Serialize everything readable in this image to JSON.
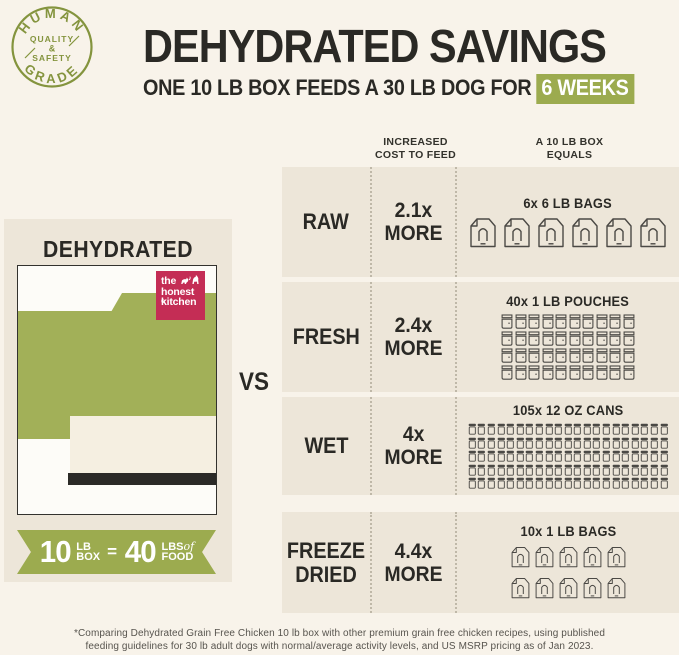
{
  "colors": {
    "page_bg": "#F8F3EA",
    "panel_beige": "#EDE6D9",
    "green": "#9CAB4F",
    "green_box": "#A2B058",
    "badge_olive": "#84943E",
    "logo_red": "#C42D55",
    "dark_text": "#2B2A26",
    "cream": "#F5EFE1"
  },
  "badge": {
    "arc_top": "HUMAN",
    "arc_bottom": "GRADE",
    "middle_line1": "QUALITY",
    "middle_line2": "&",
    "middle_line3": "SAFETY"
  },
  "header": {
    "title": "DEHYDRATED SAVINGS",
    "subtitle_prefix": "ONE 10 LB BOX FEEDS A 30 LB DOG FOR",
    "subtitle_highlight": "6 WEEKS"
  },
  "left_panel": {
    "title": "DEHYDRATED",
    "logo_line1": "the",
    "logo_line2": "honest",
    "logo_line3": "kitchen",
    "logo_reg": "®",
    "ribbon": {
      "qty1": "10",
      "unit1_line1": "LB",
      "unit1_line2": "BOX",
      "equals": "=",
      "qty2": "40",
      "unit2_line1": "LBS",
      "unit2_of": "of",
      "unit2_line2": "FOOD"
    }
  },
  "vs_label": "VS",
  "comparison_table": {
    "column_headers": [
      {
        "line1": "INCREASED",
        "line2": "COST TO FEED"
      },
      {
        "line1": "A 10 LB BOX",
        "line2": "EQUALS"
      }
    ],
    "rows": [
      {
        "label": "RAW",
        "cost": "2.1x",
        "cost_suffix": "MORE",
        "equals_label": "6x 6 LB BAGS",
        "icon": "bag-large",
        "icon_count": 6,
        "icons_per_row": 6
      },
      {
        "label": "FRESH",
        "cost": "2.4x",
        "cost_suffix": "MORE",
        "equals_label": "40x 1 LB POUCHES",
        "icon": "pouch",
        "icon_count": 40,
        "icons_per_row": 10
      },
      {
        "label": "WET",
        "cost": "4x",
        "cost_suffix": "MORE",
        "equals_label": "105x 12 OZ CANS",
        "icon": "can",
        "icon_count": 105,
        "icons_per_row": 21
      },
      {
        "label": "FREEZE DRIED",
        "cost": "4.4x",
        "cost_suffix": "MORE",
        "equals_label": "10x 1 LB BAGS",
        "icon": "bag-small",
        "icon_count": 10,
        "icons_per_row": 5
      }
    ]
  },
  "footnote": {
    "line1": "*Comparing Dehydrated Grain Free Chicken 10 lb box with other premium grain free chicken recipes, using published",
    "line2": "feeding guidelines for 30 lb adult dogs with normal/average activity levels, and US MSRP pricing as of Jan 2023."
  }
}
